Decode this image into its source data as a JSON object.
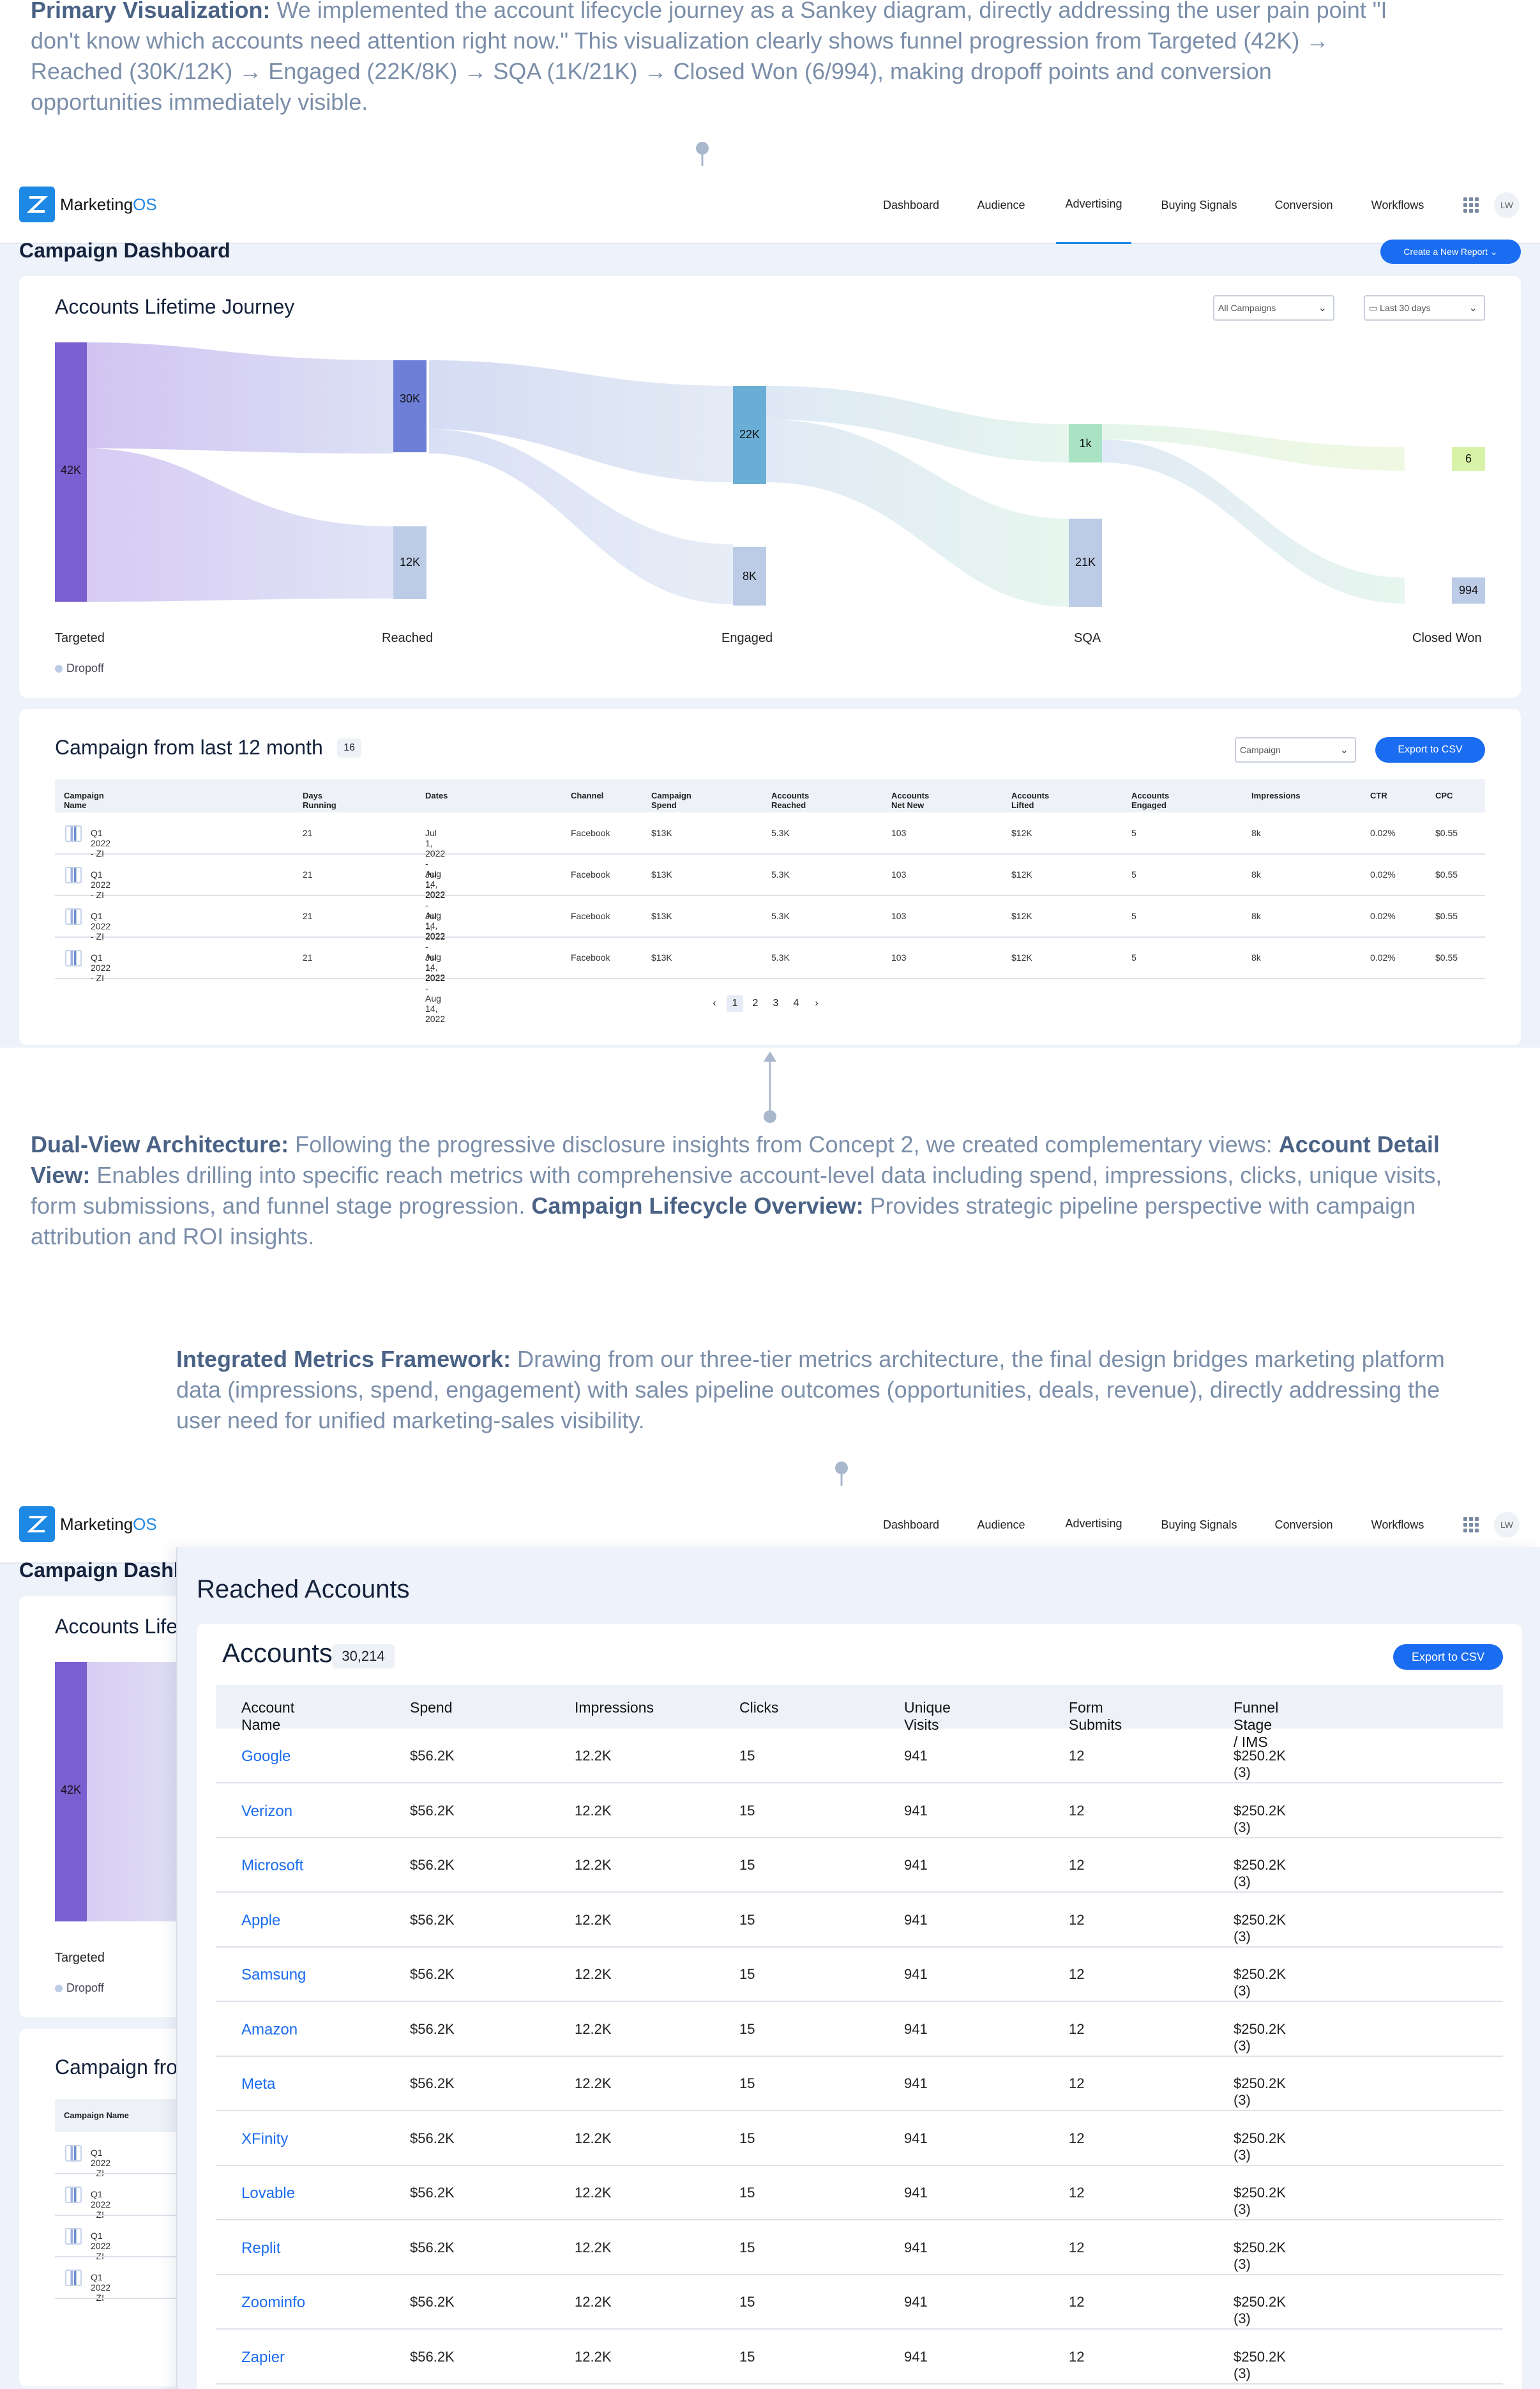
{
  "annotations": {
    "primary": {
      "heading": "Primary Visualization:",
      "text": " We implemented the account lifecycle journey as a Sankey diagram, directly addressing the user pain point \"I don't know which accounts need attention right now.\" This visualization clearly shows funnel progression from Targeted (42K) → Reached (30K/12K) → Engaged (22K/8K) → SQA (1K/21K) → Closed Won (6/994), making dropoff points and conversion opportunities immediately visible."
    },
    "dual": {
      "heading": "Dual-View Architecture:",
      "text1": " Following the progressive disclosure insights from Concept 2, we created complementary views: ",
      "sub1": "Account Detail View:",
      "text2": "  Enables drilling into specific reach metrics with comprehensive account-level data including spend, impressions, clicks, unique visits, form submissions, and funnel stage progression. ",
      "sub2": "Campaign Lifecycle Overview:",
      "text3": " Provides strategic pipeline perspective with campaign attribution and ROI insights."
    },
    "integrated": {
      "heading": "Integrated Metrics Framework:",
      "text": " Drawing from our three-tier metrics architecture, the final design bridges marketing platform data (impressions, spend, engagement) with sales pipeline outcomes (opportunities, deals, revenue), directly addressing the user need for unified marketing-sales visibility."
    }
  },
  "app": {
    "logo_text": "Marketing",
    "logo_os": "OS",
    "nav": [
      "Dashboard",
      "Audience",
      "Advertising",
      "Buying Signals",
      "Conversion",
      "Workflows"
    ],
    "active_nav": "Advertising",
    "avatar": "LW"
  },
  "dashboard": {
    "title": "Campaign Dashboard",
    "create_report": "Create a New Report",
    "journey": {
      "title": "Accounts Lifetime Journey",
      "campaign_filter": "All Campaigns",
      "date_filter": "Last 30 days",
      "stages": [
        "Targeted",
        "Reached",
        "Engaged",
        "SQA",
        "Closed Won"
      ],
      "dropoff_legend": "Dropoff",
      "nodes": {
        "targeted": "42K",
        "reached": "30K",
        "reached_drop": "12K",
        "engaged": "22K",
        "engaged_drop": "8K",
        "sqa": "1k",
        "sqa_drop": "21K",
        "won": "6",
        "won_drop": "994"
      },
      "colors": {
        "targeted": "#7a5fd0",
        "reached": "#6e7fd8",
        "dropoff": "#bccbe6",
        "engaged": "#6aaed6",
        "sqa": "#a9e3c4",
        "won": "#d8f2a8"
      }
    },
    "campaigns": {
      "title": "Campaign from last 12 month",
      "count": "16",
      "filter": "Campaign",
      "export": "Export to CSV",
      "columns": [
        "Campaign Name",
        "Days Running",
        "Dates",
        "Channel",
        "Campaign Spend",
        "Accounts Reached",
        "Accounts Net New",
        "Accounts Lifted",
        "Accounts Engaged",
        "Impressions",
        "CTR",
        "CPC"
      ],
      "rows": [
        [
          "Q1 2022 - ZI",
          "21",
          "Jul 1, 2022 - Aug 14, 2022",
          "Facebook",
          "$13K",
          "5.3K",
          "103",
          "$12K",
          "5",
          "8k",
          "0.02%",
          "$0.55"
        ],
        [
          "Q1 2022 - ZI",
          "21",
          "Jul 1, 2022 - Aug 14, 2022",
          "Facebook",
          "$13K",
          "5.3K",
          "103",
          "$12K",
          "5",
          "8k",
          "0.02%",
          "$0.55"
        ],
        [
          "Q1 2022 - ZI",
          "21",
          "Jul 1, 2022 - Aug 14, 2022",
          "Facebook",
          "$13K",
          "5.3K",
          "103",
          "$12K",
          "5",
          "8k",
          "0.02%",
          "$0.55"
        ],
        [
          "Q1 2022 - ZI",
          "21",
          "Jul 1, 2022 - Aug 14, 2022",
          "Facebook",
          "$13K",
          "5.3K",
          "103",
          "$12K",
          "5",
          "8k",
          "0.02%",
          "$0.55"
        ]
      ],
      "pages": [
        "1",
        "2",
        "3",
        "4"
      ]
    }
  },
  "reached": {
    "panel_title": "Reached Accounts",
    "accounts_title": "Accounts",
    "accounts_count": "30,214",
    "export": "Export to CSV",
    "columns": [
      "Account Name",
      "Spend",
      "Impressions",
      "Clicks",
      "Unique Visits",
      "Form Submits",
      "Funnel Stage / IMS"
    ],
    "rows": [
      [
        "Google",
        "$56.2K",
        "12.2K",
        "15",
        "941",
        "12",
        "$250.2K (3)"
      ],
      [
        "Verizon",
        "$56.2K",
        "12.2K",
        "15",
        "941",
        "12",
        "$250.2K (3)"
      ],
      [
        "Microsoft",
        "$56.2K",
        "12.2K",
        "15",
        "941",
        "12",
        "$250.2K (3)"
      ],
      [
        "Apple",
        "$56.2K",
        "12.2K",
        "15",
        "941",
        "12",
        "$250.2K (3)"
      ],
      [
        "Samsung",
        "$56.2K",
        "12.2K",
        "15",
        "941",
        "12",
        "$250.2K (3)"
      ],
      [
        "Amazon",
        "$56.2K",
        "12.2K",
        "15",
        "941",
        "12",
        "$250.2K (3)"
      ],
      [
        "Meta",
        "$56.2K",
        "12.2K",
        "15",
        "941",
        "12",
        "$250.2K (3)"
      ],
      [
        "XFinity",
        "$56.2K",
        "12.2K",
        "15",
        "941",
        "12",
        "$250.2K (3)"
      ],
      [
        "Lovable",
        "$56.2K",
        "12.2K",
        "15",
        "941",
        "12",
        "$250.2K (3)"
      ],
      [
        "Replit",
        "$56.2K",
        "12.2K",
        "15",
        "941",
        "12",
        "$250.2K (3)"
      ],
      [
        "Zoominfo",
        "$56.2K",
        "12.2K",
        "15",
        "941",
        "12",
        "$250.2K (3)"
      ],
      [
        "Zapier",
        "$56.2K",
        "12.2K",
        "15",
        "941",
        "12",
        "$250.2K (3)"
      ]
    ]
  },
  "background_dashboard": {
    "title_clip": "Campaign Dashb",
    "journey_clip": "Accounts Life",
    "campaign_clip": "Campaign fro",
    "column": "Campaign Name",
    "rows": [
      "Q1 2022 - ZI",
      "Q1 2022 - ZI",
      "Q1 2022 - ZI",
      "Q1 2022 - ZI"
    ],
    "targeted_value": "42K",
    "targeted_label": "Targeted",
    "dropoff": "Dropoff"
  }
}
